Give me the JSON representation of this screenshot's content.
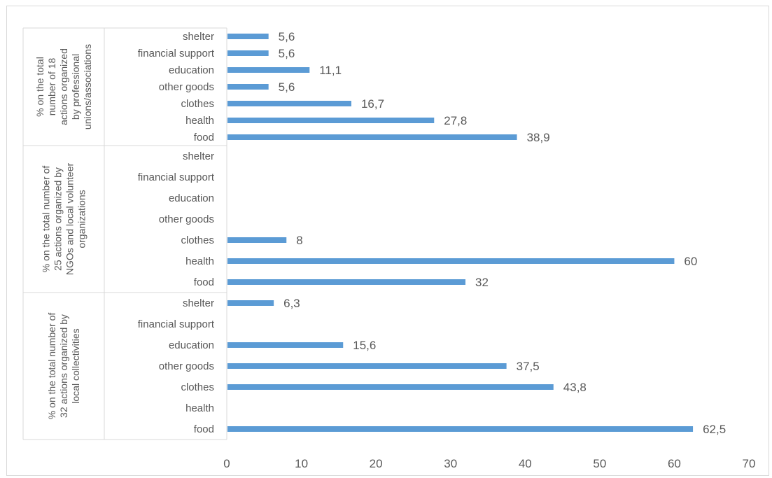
{
  "chart_data": {
    "type": "bar",
    "orientation": "horizontal",
    "title": "",
    "xlabel": "",
    "ylabel": "",
    "xlim": [
      0,
      70
    ],
    "xticks": [
      0,
      10,
      20,
      30,
      40,
      50,
      60,
      70
    ],
    "grid": false,
    "legend": "none",
    "bar_color": "#5b9bd5",
    "decimal_separator": ",",
    "categories": [
      "shelter",
      "financial support",
      "education",
      "other goods",
      "clothes",
      "health",
      "food"
    ],
    "groups": [
      {
        "label_lines": [
          "% on the total",
          "number of 18",
          "actions organized",
          "by professional",
          "unions/associations"
        ],
        "values": [
          5.6,
          5.6,
          11.1,
          5.6,
          16.7,
          27.8,
          38.9
        ]
      },
      {
        "label_lines": [
          "% on the total number of",
          "25 actions organized by",
          "NGOs and local volunteer",
          "organizations"
        ],
        "values": [
          null,
          null,
          null,
          null,
          8,
          60,
          32
        ]
      },
      {
        "label_lines": [
          "% on the total number of",
          "32 actions organized by",
          "local collectivities"
        ],
        "values": [
          6.3,
          null,
          15.6,
          37.5,
          43.8,
          null,
          62.5
        ]
      }
    ]
  }
}
